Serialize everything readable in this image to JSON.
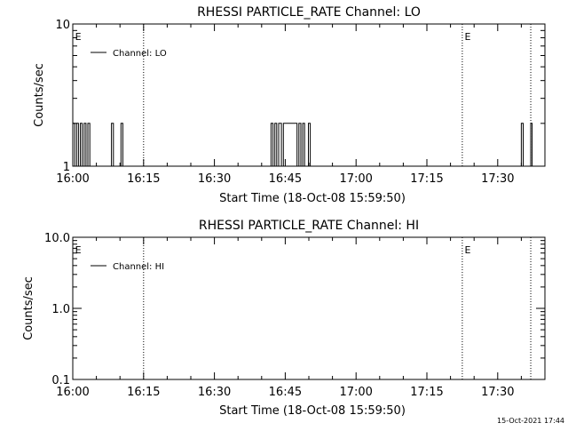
{
  "timestamp": "15-Oct-2021 17:44",
  "chart_data": [
    {
      "type": "line",
      "title": "RHESSI PARTICLE_RATE Channel: LO",
      "xlabel": "Start Time (18-Oct-08 15:59:50)",
      "ylabel": "Counts/sec",
      "y_scale": "log",
      "ylim": [
        1,
        10
      ],
      "y_ticks": [
        {
          "value": 1,
          "label": "1"
        },
        {
          "value": 10,
          "label": "10"
        }
      ],
      "x_range_minutes": [
        0,
        100
      ],
      "x_ticks": [
        {
          "minute": 0,
          "label": "16:00"
        },
        {
          "minute": 15,
          "label": "16:15"
        },
        {
          "minute": 30,
          "label": "16:30"
        },
        {
          "minute": 45,
          "label": "16:45"
        },
        {
          "minute": 60,
          "label": "17:00"
        },
        {
          "minute": 75,
          "label": "17:15"
        },
        {
          "minute": 90,
          "label": "17:30"
        }
      ],
      "event_lines_minutes": [
        15,
        82.5,
        97
      ],
      "event_marker": "E",
      "event_marker_minutes": [
        0.5,
        83
      ],
      "legend": {
        "label": "Channel: LO",
        "position": "top-left"
      },
      "series": [
        {
          "name": "Channel: LO",
          "points": [
            [
              0.0,
              1
            ],
            [
              0.0,
              2
            ],
            [
              0.4,
              2
            ],
            [
              0.4,
              1
            ],
            [
              0.8,
              1
            ],
            [
              0.8,
              2
            ],
            [
              1.2,
              2
            ],
            [
              1.2,
              1
            ],
            [
              1.6,
              1
            ],
            [
              1.6,
              2
            ],
            [
              2.0,
              2
            ],
            [
              2.0,
              1
            ],
            [
              2.4,
              1
            ],
            [
              2.4,
              2
            ],
            [
              2.8,
              2
            ],
            [
              2.8,
              1
            ],
            [
              3.2,
              1
            ],
            [
              3.2,
              2
            ],
            [
              3.6,
              2
            ],
            [
              3.6,
              1
            ],
            [
              8.2,
              1
            ],
            [
              8.2,
              2
            ],
            [
              8.6,
              2
            ],
            [
              8.6,
              1
            ],
            [
              10.2,
              1
            ],
            [
              10.2,
              2
            ],
            [
              10.6,
              2
            ],
            [
              10.6,
              1
            ],
            [
              42.0,
              1
            ],
            [
              42.0,
              2
            ],
            [
              42.4,
              2
            ],
            [
              42.4,
              1
            ],
            [
              42.8,
              1
            ],
            [
              42.8,
              2
            ],
            [
              43.2,
              2
            ],
            [
              43.2,
              1
            ],
            [
              43.6,
              1
            ],
            [
              43.6,
              2
            ],
            [
              44.2,
              2
            ],
            [
              44.2,
              1
            ],
            [
              44.6,
              1
            ],
            [
              44.6,
              2
            ],
            [
              47.5,
              2
            ],
            [
              47.5,
              1
            ],
            [
              47.9,
              1
            ],
            [
              47.9,
              2
            ],
            [
              48.3,
              2
            ],
            [
              48.3,
              1
            ],
            [
              48.7,
              1
            ],
            [
              48.7,
              2
            ],
            [
              49.1,
              2
            ],
            [
              49.1,
              1
            ],
            [
              49.9,
              1
            ],
            [
              49.9,
              2
            ],
            [
              50.3,
              2
            ],
            [
              50.3,
              1
            ],
            [
              95.0,
              1
            ],
            [
              95.0,
              2
            ],
            [
              95.4,
              2
            ],
            [
              95.4,
              1
            ],
            [
              97.0,
              1
            ],
            [
              97.0,
              2
            ],
            [
              97.3,
              2
            ],
            [
              97.3,
              1
            ]
          ]
        }
      ]
    },
    {
      "type": "line",
      "title": "RHESSI PARTICLE_RATE Channel: HI",
      "xlabel": "Start Time (18-Oct-08 15:59:50)",
      "ylabel": "Counts/sec",
      "y_scale": "log",
      "ylim": [
        0.1,
        10
      ],
      "y_ticks": [
        {
          "value": 0.1,
          "label": "0.1"
        },
        {
          "value": 1,
          "label": "1.0"
        },
        {
          "value": 10,
          "label": "10.0"
        }
      ],
      "x_range_minutes": [
        0,
        100
      ],
      "x_ticks": [
        {
          "minute": 0,
          "label": "16:00"
        },
        {
          "minute": 15,
          "label": "16:15"
        },
        {
          "minute": 30,
          "label": "16:30"
        },
        {
          "minute": 45,
          "label": "16:45"
        },
        {
          "minute": 60,
          "label": "17:00"
        },
        {
          "minute": 75,
          "label": "17:15"
        },
        {
          "minute": 90,
          "label": "17:30"
        }
      ],
      "event_lines_minutes": [
        15,
        82.5,
        97
      ],
      "event_marker": "E",
      "event_marker_minutes": [
        0.5,
        83
      ],
      "legend": {
        "label": "Channel: HI",
        "position": "top-left"
      },
      "series": [
        {
          "name": "Channel: HI",
          "points": []
        }
      ]
    }
  ]
}
